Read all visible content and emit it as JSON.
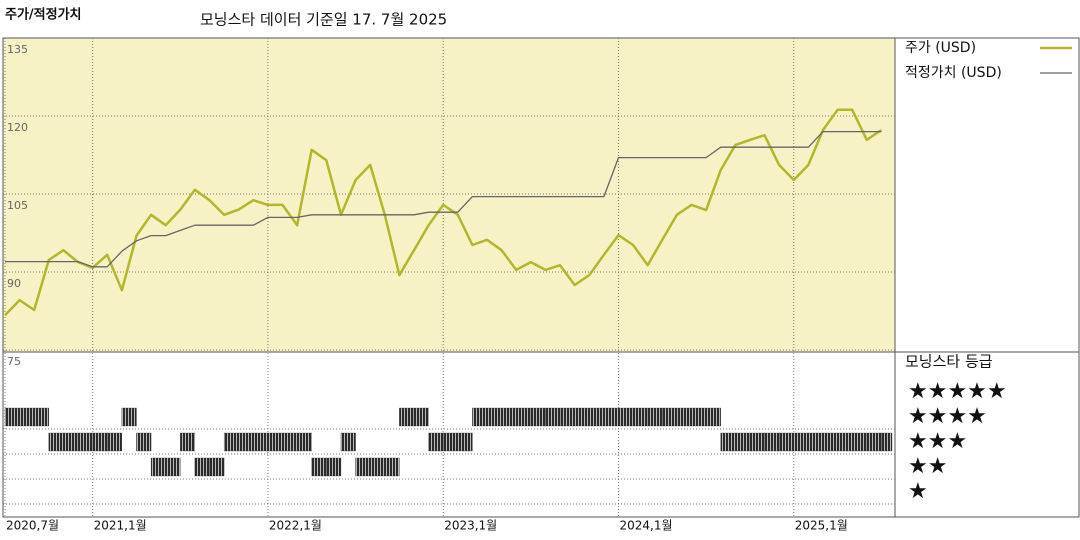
{
  "chart_data": [
    {
      "type": "line",
      "title": "주가/적정가치",
      "subtitle": "모닝스타 데이터 기준일 17. 7월 2025",
      "x": [
        "2020-07",
        "2020-08",
        "2020-09",
        "2020-10",
        "2020-11",
        "2020-12",
        "2021-01",
        "2021-02",
        "2021-03",
        "2021-04",
        "2021-05",
        "2021-06",
        "2021-07",
        "2021-08",
        "2021-09",
        "2021-10",
        "2021-11",
        "2021-12",
        "2022-01",
        "2022-02",
        "2022-03",
        "2022-04",
        "2022-05",
        "2022-06",
        "2022-07",
        "2022-08",
        "2022-09",
        "2022-10",
        "2022-11",
        "2022-12",
        "2023-01",
        "2023-02",
        "2023-03",
        "2023-04",
        "2023-05",
        "2023-06",
        "2023-07",
        "2023-08",
        "2023-09",
        "2023-10",
        "2023-11",
        "2023-12",
        "2024-01",
        "2024-02",
        "2024-03",
        "2024-04",
        "2024-05",
        "2024-06",
        "2024-07",
        "2024-08",
        "2024-09",
        "2024-10",
        "2024-11",
        "2024-12",
        "2025-01",
        "2025-02",
        "2025-03",
        "2025-04",
        "2025-05",
        "2025-06",
        "2025-07"
      ],
      "series": [
        {
          "name": "주가 (USD)",
          "color": "#b3b62c",
          "width": 2.5,
          "values": [
            81.7,
            84.6,
            82.7,
            92.3,
            94.2,
            91.9,
            90.8,
            93.3,
            86.5,
            97,
            101,
            99,
            102,
            105.8,
            103.8,
            101,
            102,
            103.8,
            102.9,
            102.9,
            99,
            113.5,
            111.5,
            101,
            107.7,
            110.6,
            101,
            89.4,
            94.2,
            99,
            102.9,
            101,
            95.2,
            96.2,
            94.2,
            90.4,
            91.9,
            90.4,
            91.3,
            87.5,
            89.4,
            93.3,
            97.1,
            95.2,
            91.3,
            96.2,
            101,
            102.9,
            101.9,
            109.6,
            114.4,
            115.4,
            116.3,
            110.6,
            107.7,
            110.6,
            117.3,
            121.2,
            121.2,
            115.4,
            117.3
          ]
        },
        {
          "name": "적정가치 (USD)",
          "color": "#666666",
          "width": 1.3,
          "values": [
            92,
            92,
            92,
            92,
            92,
            92,
            91,
            91,
            94,
            96,
            97,
            97,
            98,
            99,
            99,
            99,
            99,
            99,
            100.5,
            100.5,
            100.5,
            101,
            101,
            101,
            101,
            101,
            101,
            101,
            101,
            101.5,
            101.5,
            101.5,
            104.5,
            104.5,
            104.5,
            104.5,
            104.5,
            104.5,
            104.5,
            104.5,
            104.5,
            104.5,
            112,
            112,
            112,
            112,
            112,
            112,
            112,
            114,
            114,
            114,
            114,
            114,
            114,
            114,
            117,
            117,
            117,
            117,
            117
          ]
        }
      ],
      "xlim": [
        "2020-07",
        "2025-08"
      ],
      "xticks": [
        {
          "value": "2020-07",
          "label": "2020,7월"
        },
        {
          "value": "2021-01",
          "label": "2021,1월"
        },
        {
          "value": "2022-01",
          "label": "2022,1월"
        },
        {
          "value": "2023-01",
          "label": "2023,1월"
        },
        {
          "value": "2024-01",
          "label": "2024,1월"
        },
        {
          "value": "2025-01",
          "label": "2025,1월"
        }
      ],
      "ylim": [
        75,
        135
      ],
      "yticks": [
        75,
        90,
        105,
        120,
        135
      ],
      "grid": true,
      "background": "#f6f2c6",
      "legend": "right"
    },
    {
      "type": "rating",
      "title": "모닝스타 등급",
      "color": "#2a2a2a",
      "values": [
        4,
        4,
        4,
        3,
        3,
        3,
        3,
        3,
        4,
        3,
        2,
        2,
        3,
        2,
        2,
        3,
        3,
        3,
        3,
        3,
        3,
        2,
        2,
        3,
        2,
        2,
        2,
        4,
        4,
        3,
        3,
        3,
        4,
        4,
        4,
        4,
        4,
        4,
        4,
        4,
        4,
        4,
        4,
        4,
        4,
        4,
        4,
        4,
        4,
        3,
        3,
        3,
        3,
        3,
        3,
        3,
        3,
        3,
        3,
        3,
        3
      ],
      "ylim": [
        0,
        6
      ],
      "yticks": [
        {
          "value": 5,
          "label": "★★★★★"
        },
        {
          "value": 4,
          "label": "★★★★"
        },
        {
          "value": 3,
          "label": "★★★"
        },
        {
          "value": 2,
          "label": "★★"
        },
        {
          "value": 1,
          "label": "★"
        }
      ]
    }
  ]
}
